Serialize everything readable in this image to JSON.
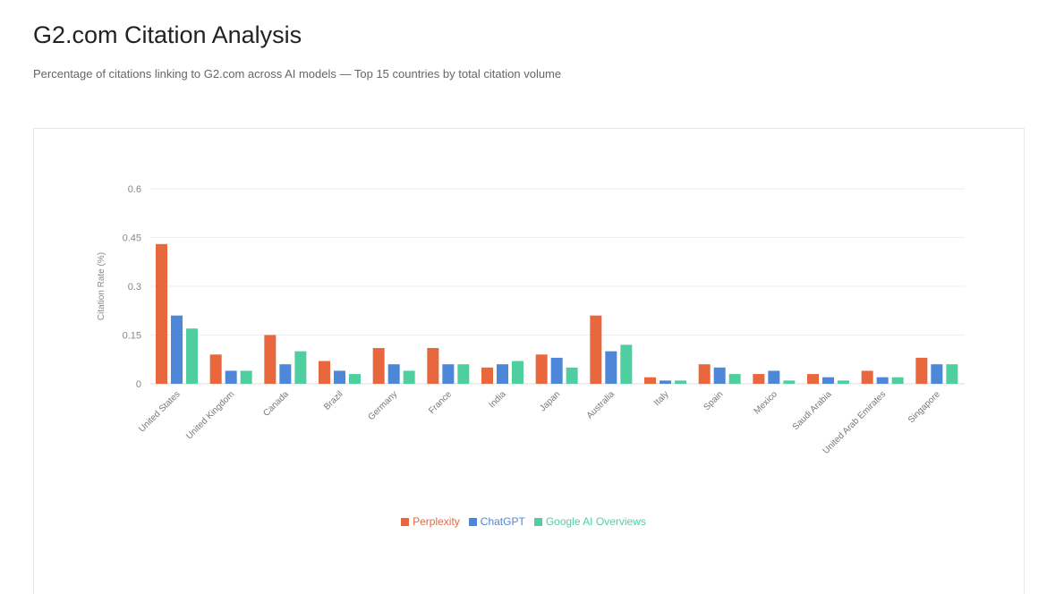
{
  "header": {
    "title": "G2.com Citation Analysis",
    "subtitle": "Percentage of citations linking to G2.com across AI models — Top 15 countries by total citation volume"
  },
  "chart_data": {
    "type": "bar",
    "title": "",
    "xlabel": "",
    "ylabel": "Citation Rate (%)",
    "ylim": [
      0,
      0.6
    ],
    "yticks": [
      "0",
      "0.15",
      "0.3",
      "0.45",
      "0.6"
    ],
    "grid": true,
    "legend_placement": "bottom",
    "categories": [
      "United States",
      "United Kingdom",
      "Canada",
      "Brazil",
      "Germany",
      "France",
      "India",
      "Japan",
      "Australia",
      "Italy",
      "Spain",
      "Mexico",
      "Saudi Arabia",
      "United Arab Emirates",
      "Singapore"
    ],
    "series": [
      {
        "name": "Perplexity",
        "color": "#e8673c",
        "values": [
          0.43,
          0.09,
          0.15,
          0.07,
          0.11,
          0.11,
          0.05,
          0.09,
          0.21,
          0.02,
          0.06,
          0.03,
          0.03,
          0.04,
          0.08
        ]
      },
      {
        "name": "ChatGPT",
        "color": "#4e86d8",
        "values": [
          0.21,
          0.04,
          0.06,
          0.04,
          0.06,
          0.06,
          0.06,
          0.08,
          0.1,
          0.01,
          0.05,
          0.04,
          0.02,
          0.02,
          0.06
        ]
      },
      {
        "name": "Google AI Overviews",
        "color": "#4fcf9f",
        "values": [
          0.17,
          0.04,
          0.1,
          0.03,
          0.04,
          0.06,
          0.07,
          0.05,
          0.12,
          0.01,
          0.03,
          0.01,
          0.01,
          0.02,
          0.06
        ]
      }
    ]
  }
}
